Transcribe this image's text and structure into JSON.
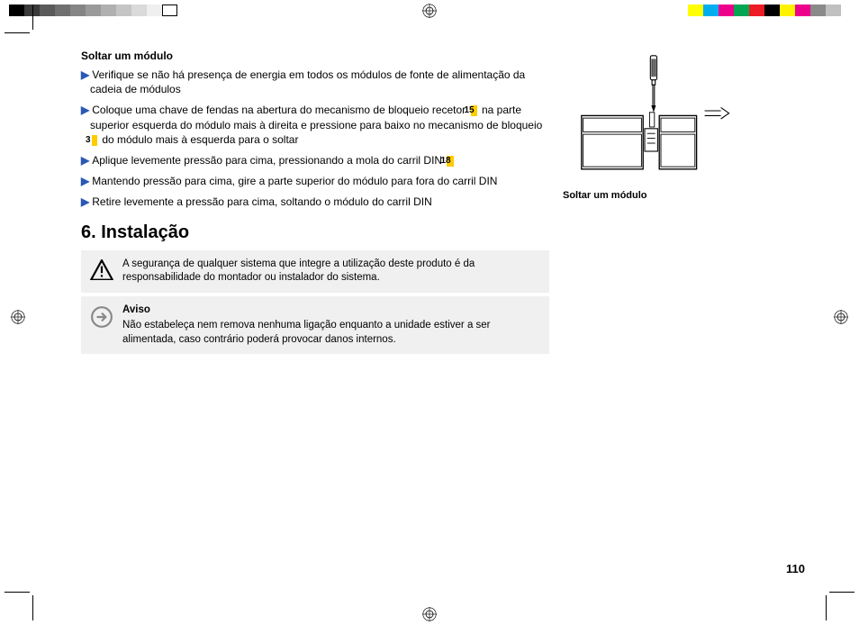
{
  "colorbar_left": [
    "#000000",
    "#3a3a3a",
    "#5a5a5a",
    "#707070",
    "#858585",
    "#9a9a9a",
    "#b0b0b0",
    "#c5c5c5",
    "#dadada",
    "#efefef",
    "#ffffff"
  ],
  "colorbar_right": [
    "#ffff00",
    "#00aeef",
    "#ec008c",
    "#00a651",
    "#ed1c24",
    "#000000",
    "#fff200",
    "#ec008c",
    "#8a8a8a",
    "#c0c0c0"
  ],
  "section_title": "Soltar um módulo",
  "steps": [
    {
      "pre": "Verifique se não há presença de energia em todos os módulos de fonte de alimentação da cadeia de módulos"
    },
    {
      "pre": "Coloque uma chave de fendas na abertura do mecanismo de bloqueio recetor ",
      "tag": "15",
      "mid": " na parte superior esquerda do módulo mais à direita e pressione para baixo no mecanismo de bloqueio ",
      "tag2": "3",
      "post": " do módulo mais à esquerda para o soltar"
    },
    {
      "pre": "Aplique levemente pressão para cima, pressionando a mola do carril DIN ",
      "tag": "18"
    },
    {
      "pre": "Mantendo pressão para cima, gire a parte superior do módulo para fora do carril DIN"
    },
    {
      "pre": "Retire levemente a pressão para cima, soltando o módulo do carril DIN"
    }
  ],
  "heading": "6.  Instalação",
  "note1": "A segurança de qualquer sistema que integre a utilização deste produto é da responsabilidade do montador ou instalador do sistema.",
  "note2_title": "Aviso",
  "note2_body": "Não estabeleça nem remova nenhuma ligação enquanto a unidade estiver a ser alimentada, caso contrário poderá provocar danos internos.",
  "figure_caption": "Soltar um módulo",
  "page_number": "110",
  "accent_arrow": "#2a58b5",
  "tag_bg": "#ffcc00"
}
